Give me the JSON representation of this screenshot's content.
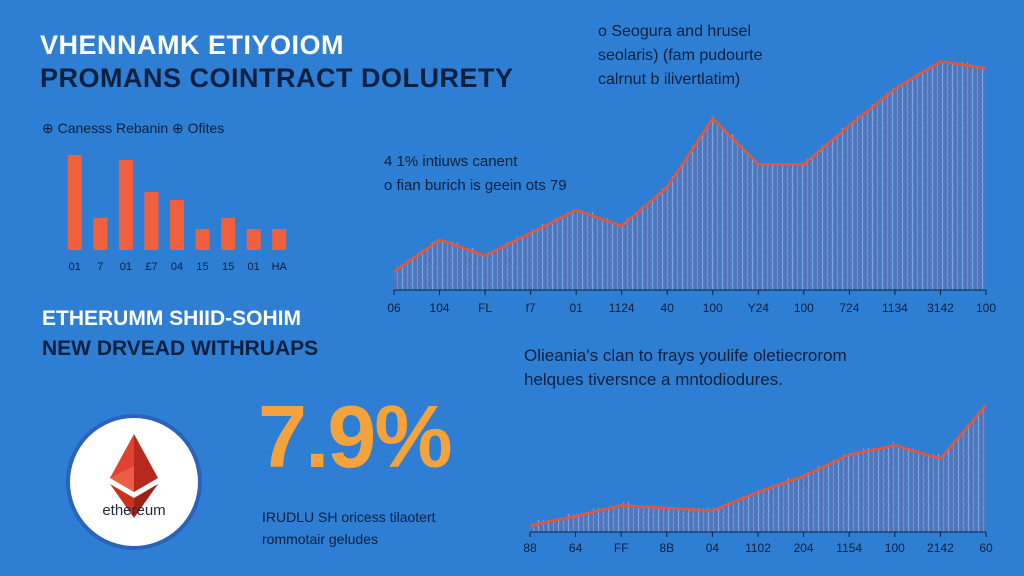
{
  "header": {
    "title_line1": "VHENNAMK ETIYOIOM",
    "title_line2": "PROMANS COINTRACT DOLURETY"
  },
  "top_right_note": {
    "line1": "o Seogura and hrusel",
    "line2": "seolaris) (fam pudourte",
    "line3": "calrnut b ilivertlatim)"
  },
  "small_bar_legend": "⊕ Canesss Rebanin ⊕ Ofites",
  "middle_note": {
    "line1": "4 1% intiuws canent",
    "line2": "o fian burich is geein ots 79"
  },
  "section2": {
    "title_line1": "ETHERUMM SHIID-SOHIM",
    "title_line2": "NEW DRVEAD WITHRUAPS"
  },
  "bottom_note": {
    "line1": "Olieania's clan to frays youlife oletiecrorom",
    "line2": "helques tiversnce a mntodiodures."
  },
  "kpi": {
    "value": "7.9%",
    "caption_line1": "IRUDLU SH oricess tilaotert",
    "caption_line2": "rommotair geludes"
  },
  "logo": {
    "word": "ethereum",
    "icon": "ethereum-diamond-icon"
  },
  "colors": {
    "background": "#2e7fd3",
    "bar": "#f0603c",
    "line": "#e8563a",
    "kpi": "#f4a23c"
  },
  "chart_data": [
    {
      "type": "bar",
      "categories": [
        "01",
        "7",
        "01",
        "£7",
        "04",
        "15",
        "15",
        "01",
        "HA"
      ],
      "values": [
        0.95,
        0.32,
        0.9,
        0.58,
        0.5,
        0.21,
        0.32,
        0.21,
        0.21
      ],
      "ylim": [
        0,
        1
      ]
    },
    {
      "type": "area",
      "x": [
        "06",
        "104",
        "FL",
        "f7",
        "01",
        "1124",
        "40",
        "100",
        "Y24",
        "100",
        "724",
        "1134",
        "3142",
        "100"
      ],
      "values": [
        0.08,
        0.22,
        0.15,
        0.25,
        0.35,
        0.28,
        0.45,
        0.75,
        0.55,
        0.55,
        0.72,
        0.88,
        1.0,
        0.97
      ],
      "ylim": [
        0,
        1.05
      ]
    },
    {
      "type": "area",
      "x": [
        "88",
        "64",
        "FF",
        "8B",
        "04",
        "1102",
        "204",
        "1154",
        "100",
        "2142",
        "60"
      ],
      "values": [
        0.05,
        0.12,
        0.2,
        0.18,
        0.16,
        0.3,
        0.42,
        0.58,
        0.65,
        0.55,
        0.95
      ],
      "ylim": [
        0,
        1.05
      ]
    }
  ]
}
